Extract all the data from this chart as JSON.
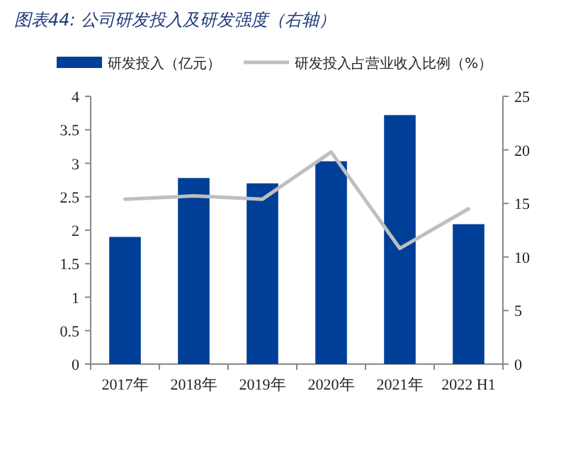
{
  "chart_data": {
    "type": "bar",
    "title": "图表44: 公司研发投入及研发强度（右轴）",
    "categories": [
      "2017年",
      "2018年",
      "2019年",
      "2020年",
      "2021年",
      "2022 H1"
    ],
    "series": [
      {
        "name": "研发投入（亿元）",
        "color": "#003f98",
        "values": [
          1.9,
          2.78,
          2.7,
          3.03,
          3.72,
          2.09
        ]
      },
      {
        "name": "研发投入占营业收入比例（%）",
        "type": "line",
        "axis": "y2",
        "color": "#bfbfbf",
        "values": [
          15.4,
          15.7,
          15.4,
          19.8,
          10.8,
          14.5
        ]
      }
    ],
    "ylim": [
      0,
      4
    ],
    "yticks": [
      0,
      0.5,
      1,
      1.5,
      2,
      2.5,
      3,
      3.5,
      4
    ],
    "y2lim": [
      0,
      25
    ],
    "y2ticks": [
      0,
      5,
      10,
      15,
      20,
      25
    ],
    "legend": "top",
    "grid": false
  }
}
